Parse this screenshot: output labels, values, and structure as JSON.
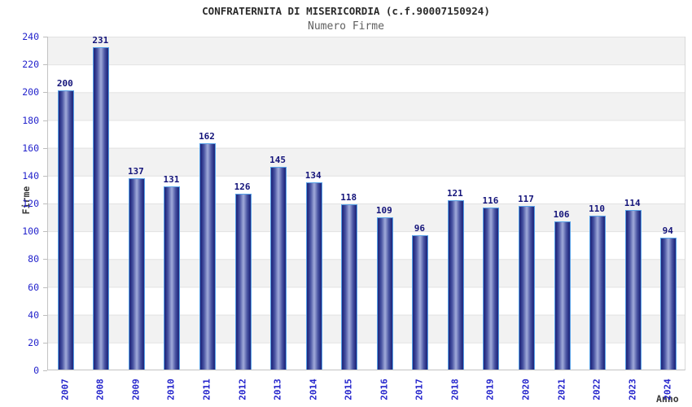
{
  "title": "CONFRATERNITA DI MISERICORDIA (c.f.90007150924)",
  "subtitle": "Numero Firme",
  "chart_data": {
    "type": "bar",
    "title": "CONFRATERNITA DI MISERICORDIA (c.f.90007150924)",
    "subtitle": "Numero Firme",
    "categories": [
      "2007",
      "2008",
      "2009",
      "2010",
      "2011",
      "2012",
      "2013",
      "2014",
      "2015",
      "2016",
      "2017",
      "2018",
      "2019",
      "2020",
      "2021",
      "2022",
      "2023",
      "2024"
    ],
    "values": [
      200,
      231,
      137,
      131,
      162,
      126,
      145,
      134,
      118,
      109,
      96,
      121,
      116,
      117,
      106,
      110,
      114,
      94
    ],
    "xlabel": "Anno",
    "ylabel": "Firme",
    "ylim": [
      0,
      240
    ],
    "ytick_step": 20,
    "grid": "horizontal-bands",
    "legend": "none",
    "colors": {
      "bar_edge": "#232b80",
      "bar_mid": "#4a55a3",
      "bar_center": "#9ba5d6",
      "bar_border": "#57a1e7",
      "value_label": "#14147a",
      "tick_label": "#2424cc",
      "band_gray": "#f2f2f2",
      "band_white": "#ffffff",
      "title_color": "#2b2b2b",
      "subtitle_color": "#606060"
    }
  }
}
